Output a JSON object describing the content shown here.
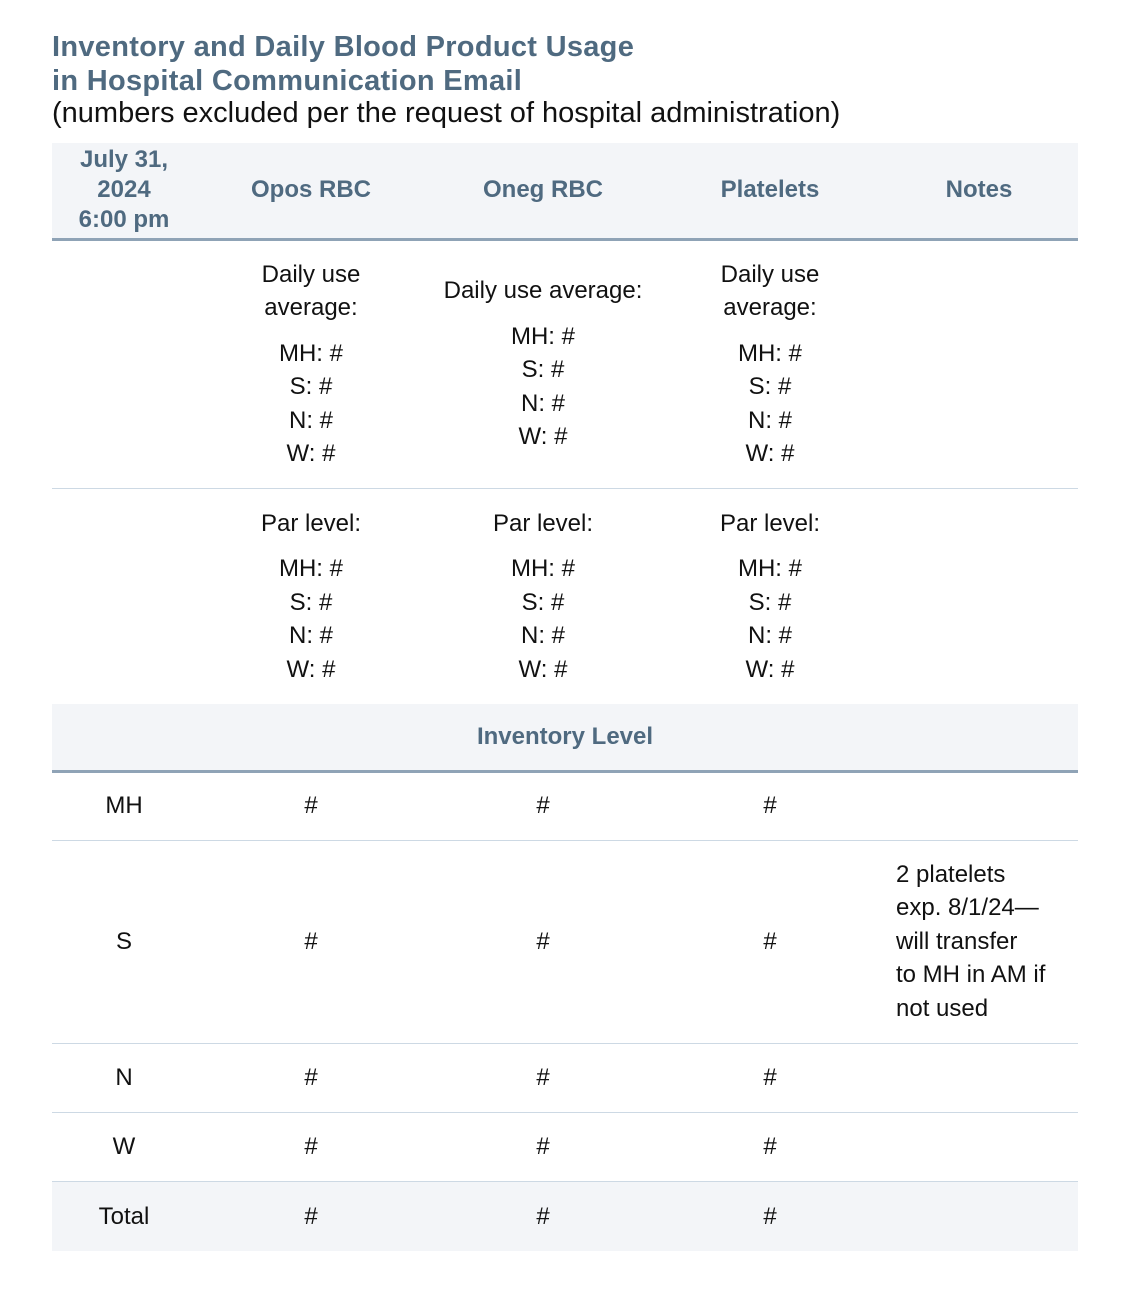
{
  "title_lines": [
    "Inventory and Daily Blood Product Usage",
    "in Hospital Communication Email"
  ],
  "subtitle": "(numbers excluded per the request of hospital administration)",
  "colors": {
    "heading": "#4f6a80",
    "header_bg": "#f3f5f8",
    "rule_thick": "#8fa3b6",
    "rule_thin": "#cdd9e4"
  },
  "header": {
    "date_lines": [
      "July 31,",
      "2024",
      "6:00 pm"
    ],
    "columns": [
      "Opos RBC",
      "Oneg RBC",
      "Platelets",
      "Notes"
    ]
  },
  "daily_use": [
    {
      "label": [
        "Daily use",
        "average:"
      ],
      "values": [
        "MH: #",
        "S: #",
        "N: #",
        "W: #"
      ]
    },
    {
      "label": [
        "Daily use average:"
      ],
      "values": [
        "MH: #",
        "S: #",
        "N: #",
        "W: #"
      ]
    },
    {
      "label": [
        "Daily use",
        "average:"
      ],
      "values": [
        "MH: #",
        "S: #",
        "N:  #",
        "W: #"
      ]
    }
  ],
  "par_level": [
    {
      "label": [
        "Par level:"
      ],
      "values": [
        "MH: #",
        "S: #",
        "N: #",
        "W: #"
      ]
    },
    {
      "label": [
        "Par level:"
      ],
      "values": [
        "MH: #",
        "S: #",
        "N: #",
        "W: #"
      ]
    },
    {
      "label": [
        "Par level:"
      ],
      "values": [
        "MH: #",
        "S: #",
        "N: #",
        "W: #"
      ]
    }
  ],
  "inventory_level_label": "Inventory Level",
  "inventory_rows": [
    {
      "site": "MH",
      "values": [
        "#",
        "#",
        "#"
      ],
      "notes": []
    },
    {
      "site": "S",
      "values": [
        "#",
        "#",
        "#"
      ],
      "notes": [
        "2 platelets",
        "exp. 8/1/24—",
        "will transfer",
        "to MH in AM if",
        "not used"
      ]
    },
    {
      "site": "N",
      "values": [
        "#",
        "#",
        "#"
      ],
      "notes": []
    },
    {
      "site": "W",
      "values": [
        "#",
        "#",
        "#"
      ],
      "notes": []
    },
    {
      "site": "Total",
      "values": [
        "#",
        "#",
        "#"
      ],
      "notes": []
    }
  ]
}
